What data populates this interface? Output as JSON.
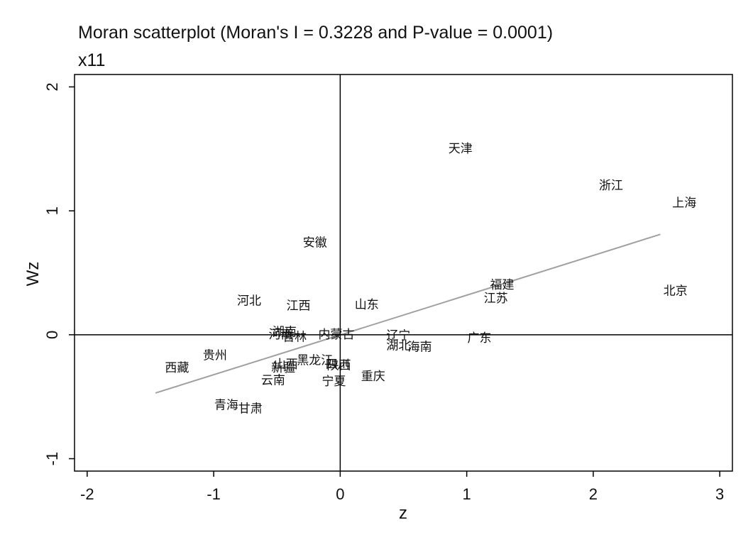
{
  "chart_data": {
    "type": "scatter",
    "title": "Moran scatterplot (Moran's I = 0.3228 and P-value = 0.0001)",
    "subtitle": "x11",
    "xlabel": "z",
    "ylabel": "Wz",
    "xlim": [
      -2.1,
      3.1
    ],
    "ylim": [
      -1.1,
      2.1
    ],
    "xticks": [
      -2,
      -1,
      0,
      1,
      2,
      3
    ],
    "yticks": [
      -1,
      0,
      1,
      2
    ],
    "grid": false,
    "legend": "none",
    "reference_lines": {
      "x": 0,
      "y": 0
    },
    "fit_line": {
      "x": [
        -1.46,
        2.53
      ],
      "y": [
        -0.47,
        0.81
      ],
      "color": "#a0a0a0"
    },
    "points": [
      {
        "label": "天津",
        "x": 0.95,
        "y": 1.5
      },
      {
        "label": "浙江",
        "x": 2.14,
        "y": 1.2
      },
      {
        "label": "上海",
        "x": 2.72,
        "y": 1.06
      },
      {
        "label": "安徽",
        "x": -0.2,
        "y": 0.74
      },
      {
        "label": "福建",
        "x": 1.28,
        "y": 0.4
      },
      {
        "label": "北京",
        "x": 2.65,
        "y": 0.35
      },
      {
        "label": "江苏",
        "x": 1.23,
        "y": 0.29
      },
      {
        "label": "河北",
        "x": -0.72,
        "y": 0.27
      },
      {
        "label": "江西",
        "x": -0.33,
        "y": 0.23
      },
      {
        "label": "山东",
        "x": 0.21,
        "y": 0.24
      },
      {
        "label": "湖南",
        "x": -0.44,
        "y": 0.02
      },
      {
        "label": "河南",
        "x": -0.47,
        "y": 0.0
      },
      {
        "label": "吉林",
        "x": -0.36,
        "y": -0.02
      },
      {
        "label": "内蒙古",
        "x": -0.03,
        "y": 0.0
      },
      {
        "label": "辽宁",
        "x": 0.46,
        "y": -0.01
      },
      {
        "label": "湖北",
        "x": 0.46,
        "y": -0.09
      },
      {
        "label": "海南",
        "x": 0.63,
        "y": -0.1
      },
      {
        "label": "广东",
        "x": 1.1,
        "y": -0.03
      },
      {
        "label": "贵州",
        "x": -0.99,
        "y": -0.17
      },
      {
        "label": "西藏",
        "x": -1.29,
        "y": -0.27
      },
      {
        "label": "黑龙江",
        "x": -0.2,
        "y": -0.21
      },
      {
        "label": "山西",
        "x": -0.43,
        "y": -0.24
      },
      {
        "label": "新疆",
        "x": -0.45,
        "y": -0.27
      },
      {
        "label": "陕西",
        "x": -0.01,
        "y": -0.25
      },
      {
        "label": "四川",
        "x": -0.02,
        "y": -0.24
      },
      {
        "label": "云南",
        "x": -0.53,
        "y": -0.37
      },
      {
        "label": "宁夏",
        "x": -0.05,
        "y": -0.38
      },
      {
        "label": "重庆",
        "x": 0.26,
        "y": -0.34
      },
      {
        "label": "青海",
        "x": -0.9,
        "y": -0.57
      },
      {
        "label": "甘肃",
        "x": -0.71,
        "y": -0.6
      }
    ]
  }
}
